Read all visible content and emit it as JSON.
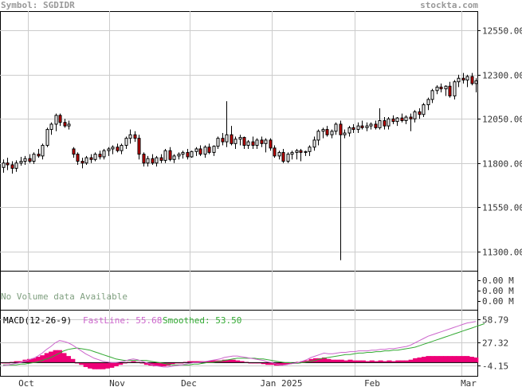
{
  "header": {
    "symbol": "Symbol: SGDIDR",
    "site": "stockta.com"
  },
  "price_panel": {
    "yticks": [
      "12550.00",
      "12300.00",
      "12050.00",
      "11800.00",
      "11550.00",
      "11300.00"
    ],
    "ytick_values": [
      12550,
      12300,
      12050,
      11800,
      11550,
      11300
    ],
    "ylim": [
      11190,
      12660
    ]
  },
  "volume_panel": {
    "message": "No Volume data Available",
    "yticks": [
      "0.00 M",
      "0.00 M",
      "0.00 M"
    ]
  },
  "macd_panel": {
    "title": "MACD(12-26-9)",
    "fast_label": "FastLine: 55.68",
    "smooth_label": "Smoothed: 53.50",
    "yticks": [
      "58.79",
      "27.32",
      "-4.15"
    ],
    "ytick_values": [
      58.79,
      27.32,
      -4.15
    ],
    "ylim": [
      -18,
      72
    ]
  },
  "x_axis": {
    "labels": [
      "Oct",
      "Nov",
      "Dec",
      "Jan 2025",
      "Feb",
      "Mar"
    ]
  },
  "colors": {
    "up": "#ffffff",
    "down": "#cc0000",
    "fast": "#cc66cc",
    "smooth": "#33aa33",
    "hist": "#ee0077"
  },
  "chart_data": {
    "type": "candlestick",
    "symbol": "SGDIDR",
    "candles": [
      {
        "o": 11775,
        "h": 11820,
        "l": 11745,
        "c": 11800
      },
      {
        "o": 11800,
        "h": 11830,
        "l": 11760,
        "c": 11790
      },
      {
        "o": 11790,
        "h": 11810,
        "l": 11740,
        "c": 11770
      },
      {
        "o": 11770,
        "h": 11815,
        "l": 11750,
        "c": 11800
      },
      {
        "o": 11800,
        "h": 11835,
        "l": 11785,
        "c": 11810
      },
      {
        "o": 11810,
        "h": 11840,
        "l": 11790,
        "c": 11825
      },
      {
        "o": 11825,
        "h": 11850,
        "l": 11800,
        "c": 11810
      },
      {
        "o": 11810,
        "h": 11860,
        "l": 11795,
        "c": 11850
      },
      {
        "o": 11850,
        "h": 11880,
        "l": 11830,
        "c": 11840
      },
      {
        "o": 11840,
        "h": 11910,
        "l": 11820,
        "c": 11900
      },
      {
        "o": 11900,
        "h": 12000,
        "l": 11890,
        "c": 11990
      },
      {
        "o": 11990,
        "h": 12030,
        "l": 11960,
        "c": 12020
      },
      {
        "o": 12020,
        "h": 12080,
        "l": 11980,
        "c": 12070
      },
      {
        "o": 12070,
        "h": 12080,
        "l": 12010,
        "c": 12030
      },
      {
        "o": 12030,
        "h": 12050,
        "l": 12000,
        "c": 12010
      },
      {
        "o": 12010,
        "h": 12040,
        "l": 11990,
        "c": 12020
      },
      {
        "o": 11880,
        "h": 11890,
        "l": 11830,
        "c": 11850
      },
      {
        "o": 11850,
        "h": 11860,
        "l": 11790,
        "c": 11810
      },
      {
        "o": 11810,
        "h": 11830,
        "l": 11770,
        "c": 11800
      },
      {
        "o": 11800,
        "h": 11840,
        "l": 11790,
        "c": 11830
      },
      {
        "o": 11830,
        "h": 11850,
        "l": 11800,
        "c": 11820
      },
      {
        "o": 11820,
        "h": 11860,
        "l": 11810,
        "c": 11850
      },
      {
        "o": 11850,
        "h": 11870,
        "l": 11820,
        "c": 11835
      },
      {
        "o": 11835,
        "h": 11880,
        "l": 11820,
        "c": 11870
      },
      {
        "o": 11870,
        "h": 11890,
        "l": 11840,
        "c": 11880
      },
      {
        "o": 11880,
        "h": 11900,
        "l": 11850,
        "c": 11890
      },
      {
        "o": 11890,
        "h": 11910,
        "l": 11860,
        "c": 11870
      },
      {
        "o": 11870,
        "h": 11910,
        "l": 11850,
        "c": 11900
      },
      {
        "o": 11900,
        "h": 11950,
        "l": 11880,
        "c": 11940
      },
      {
        "o": 11940,
        "h": 11990,
        "l": 11910,
        "c": 11960
      },
      {
        "o": 11960,
        "h": 11980,
        "l": 11920,
        "c": 11940
      },
      {
        "o": 11940,
        "h": 11960,
        "l": 11820,
        "c": 11850
      },
      {
        "o": 11850,
        "h": 11860,
        "l": 11780,
        "c": 11800
      },
      {
        "o": 11800,
        "h": 11840,
        "l": 11780,
        "c": 11825
      },
      {
        "o": 11825,
        "h": 11850,
        "l": 11790,
        "c": 11800
      },
      {
        "o": 11800,
        "h": 11840,
        "l": 11780,
        "c": 11830
      },
      {
        "o": 11830,
        "h": 11850,
        "l": 11800,
        "c": 11815
      },
      {
        "o": 11815,
        "h": 11880,
        "l": 11800,
        "c": 11870
      },
      {
        "o": 11870,
        "h": 11890,
        "l": 11810,
        "c": 11820
      },
      {
        "o": 11820,
        "h": 11850,
        "l": 11800,
        "c": 11840
      },
      {
        "o": 11840,
        "h": 11860,
        "l": 11820,
        "c": 11850
      },
      {
        "o": 11850,
        "h": 11870,
        "l": 11825,
        "c": 11860
      },
      {
        "o": 11860,
        "h": 11880,
        "l": 11820,
        "c": 11835
      },
      {
        "o": 11835,
        "h": 11870,
        "l": 11830,
        "c": 11865
      },
      {
        "o": 11865,
        "h": 11890,
        "l": 11840,
        "c": 11880
      },
      {
        "o": 11880,
        "h": 11900,
        "l": 11840,
        "c": 11850
      },
      {
        "o": 11850,
        "h": 11900,
        "l": 11830,
        "c": 11890
      },
      {
        "o": 11890,
        "h": 11910,
        "l": 11850,
        "c": 11860
      },
      {
        "o": 11860,
        "h": 11900,
        "l": 11840,
        "c": 11895
      },
      {
        "o": 11895,
        "h": 11950,
        "l": 11880,
        "c": 11940
      },
      {
        "o": 11940,
        "h": 11970,
        "l": 11900,
        "c": 11920
      },
      {
        "o": 11920,
        "h": 12150,
        "l": 11890,
        "c": 11960
      },
      {
        "o": 11960,
        "h": 12010,
        "l": 11900,
        "c": 11910
      },
      {
        "o": 11910,
        "h": 11950,
        "l": 11880,
        "c": 11935
      },
      {
        "o": 11935,
        "h": 11960,
        "l": 11900,
        "c": 11945
      },
      {
        "o": 11945,
        "h": 11950,
        "l": 11880,
        "c": 11900
      },
      {
        "o": 11900,
        "h": 11930,
        "l": 11880,
        "c": 11920
      },
      {
        "o": 11920,
        "h": 11950,
        "l": 11880,
        "c": 11900
      },
      {
        "o": 11900,
        "h": 11940,
        "l": 11880,
        "c": 11930
      },
      {
        "o": 11930,
        "h": 11950,
        "l": 11890,
        "c": 11910
      },
      {
        "o": 11910,
        "h": 11940,
        "l": 11860,
        "c": 11930
      },
      {
        "o": 11930,
        "h": 11940,
        "l": 11870,
        "c": 11885
      },
      {
        "o": 11885,
        "h": 11900,
        "l": 11830,
        "c": 11840
      },
      {
        "o": 11840,
        "h": 11870,
        "l": 11820,
        "c": 11860
      },
      {
        "o": 11860,
        "h": 11880,
        "l": 11800,
        "c": 11810
      },
      {
        "o": 11810,
        "h": 11860,
        "l": 11800,
        "c": 11850
      },
      {
        "o": 11850,
        "h": 11870,
        "l": 11820,
        "c": 11860
      },
      {
        "o": 11860,
        "h": 11880,
        "l": 11820,
        "c": 11870
      },
      {
        "o": 11870,
        "h": 11880,
        "l": 11810,
        "c": 11860
      },
      {
        "o": 11860,
        "h": 11870,
        "l": 11840,
        "c": 11865
      },
      {
        "o": 11865,
        "h": 11900,
        "l": 11840,
        "c": 11890
      },
      {
        "o": 11890,
        "h": 11950,
        "l": 11870,
        "c": 11930
      },
      {
        "o": 11930,
        "h": 11990,
        "l": 11900,
        "c": 11980
      },
      {
        "o": 11980,
        "h": 12000,
        "l": 11940,
        "c": 11990
      },
      {
        "o": 11990,
        "h": 12010,
        "l": 11950,
        "c": 11960
      },
      {
        "o": 11960,
        "h": 11990,
        "l": 11940,
        "c": 11980
      },
      {
        "o": 11980,
        "h": 12030,
        "l": 11960,
        "c": 12020
      },
      {
        "o": 12020,
        "h": 12040,
        "l": 11250,
        "c": 11960
      },
      {
        "o": 11960,
        "h": 11990,
        "l": 11940,
        "c": 11970
      },
      {
        "o": 11970,
        "h": 12010,
        "l": 11950,
        "c": 12000
      },
      {
        "o": 12000,
        "h": 12020,
        "l": 11970,
        "c": 11990
      },
      {
        "o": 11990,
        "h": 12030,
        "l": 11970,
        "c": 12010
      },
      {
        "o": 12010,
        "h": 12040,
        "l": 11990,
        "c": 12000
      },
      {
        "o": 12000,
        "h": 12030,
        "l": 11980,
        "c": 12010
      },
      {
        "o": 12010,
        "h": 12030,
        "l": 11990,
        "c": 12020
      },
      {
        "o": 12020,
        "h": 12040,
        "l": 11990,
        "c": 12000
      },
      {
        "o": 12000,
        "h": 12110,
        "l": 11990,
        "c": 12040
      },
      {
        "o": 12040,
        "h": 12060,
        "l": 11990,
        "c": 12010
      },
      {
        "o": 12010,
        "h": 12060,
        "l": 11990,
        "c": 12050
      },
      {
        "o": 12050,
        "h": 12070,
        "l": 12020,
        "c": 12035
      },
      {
        "o": 12035,
        "h": 12060,
        "l": 12010,
        "c": 12055
      },
      {
        "o": 12055,
        "h": 12080,
        "l": 12030,
        "c": 12040
      },
      {
        "o": 12040,
        "h": 12070,
        "l": 12020,
        "c": 12060
      },
      {
        "o": 12060,
        "h": 12080,
        "l": 11980,
        "c": 12050
      },
      {
        "o": 12050,
        "h": 12100,
        "l": 12030,
        "c": 12090
      },
      {
        "o": 12090,
        "h": 12110,
        "l": 12050,
        "c": 12075
      },
      {
        "o": 12075,
        "h": 12140,
        "l": 12060,
        "c": 12130
      },
      {
        "o": 12130,
        "h": 12170,
        "l": 12100,
        "c": 12160
      },
      {
        "o": 12160,
        "h": 12220,
        "l": 12140,
        "c": 12210
      },
      {
        "o": 12210,
        "h": 12240,
        "l": 12190,
        "c": 12230
      },
      {
        "o": 12230,
        "h": 12250,
        "l": 12200,
        "c": 12220
      },
      {
        "o": 12220,
        "h": 12240,
        "l": 12180,
        "c": 12235
      },
      {
        "o": 12235,
        "h": 12260,
        "l": 12170,
        "c": 12180
      },
      {
        "o": 12180,
        "h": 12270,
        "l": 12160,
        "c": 12260
      },
      {
        "o": 12260,
        "h": 12300,
        "l": 12230,
        "c": 12280
      },
      {
        "o": 12280,
        "h": 12310,
        "l": 12250,
        "c": 12270
      },
      {
        "o": 12270,
        "h": 12300,
        "l": 12230,
        "c": 12290
      },
      {
        "o": 12290,
        "h": 12310,
        "l": 12240,
        "c": 12250
      },
      {
        "o": 12250,
        "h": 12280,
        "l": 12200,
        "c": 12265
      }
    ],
    "x_labels": [
      "Oct",
      "Nov",
      "Dec",
      "Jan 2025",
      "Feb",
      "Mar"
    ],
    "macd": {
      "fast": [
        -4,
        -3,
        -2,
        -1,
        0,
        2,
        4,
        6,
        9,
        13,
        18,
        22,
        27,
        30,
        29,
        27,
        24,
        20,
        16,
        12,
        9,
        6,
        4,
        2,
        1,
        0,
        0,
        1,
        2,
        4,
        5,
        4,
        2,
        0,
        -2,
        -4,
        -5,
        -6,
        -6,
        -5,
        -4,
        -3,
        -2,
        -1,
        0,
        0,
        1,
        2,
        3,
        4,
        5,
        7,
        8,
        9,
        9,
        8,
        7,
        6,
        5,
        4,
        3,
        1,
        0,
        -2,
        -3,
        -3,
        -2,
        -1,
        0,
        2,
        4,
        7,
        9,
        11,
        13,
        12,
        12,
        13,
        14,
        14,
        15,
        15,
        16,
        16,
        16,
        17,
        17,
        18,
        18,
        19,
        19,
        20,
        21,
        22,
        24,
        27,
        30,
        33,
        36,
        38,
        40,
        42,
        44,
        46,
        48,
        50,
        52,
        54,
        55,
        56
      ],
      "smooth": [
        -3,
        -3,
        -3,
        -3,
        -2,
        -2,
        -1,
        0,
        1,
        3,
        5,
        7,
        10,
        13,
        16,
        18,
        19,
        20,
        19,
        18,
        17,
        15,
        13,
        11,
        9,
        7,
        5,
        4,
        3,
        3,
        3,
        3,
        3,
        3,
        2,
        1,
        0,
        -1,
        -2,
        -3,
        -3,
        -3,
        -3,
        -3,
        -2,
        -2,
        -1,
        0,
        0,
        1,
        2,
        3,
        4,
        5,
        6,
        6,
        6,
        6,
        6,
        5,
        5,
        4,
        3,
        2,
        1,
        0,
        0,
        -1,
        -1,
        0,
        1,
        2,
        3,
        5,
        6,
        7,
        8,
        9,
        10,
        11,
        11,
        12,
        13,
        13,
        14,
        14,
        15,
        15,
        16,
        16,
        17,
        17,
        18,
        19,
        20,
        21,
        23,
        25,
        27,
        29,
        31,
        33,
        35,
        37,
        39,
        41,
        43,
        45,
        47,
        49,
        51,
        53
      ],
      "fast_last": 55.68,
      "smooth_last": 53.5
    },
    "ylim": [
      11190,
      12660
    ]
  }
}
